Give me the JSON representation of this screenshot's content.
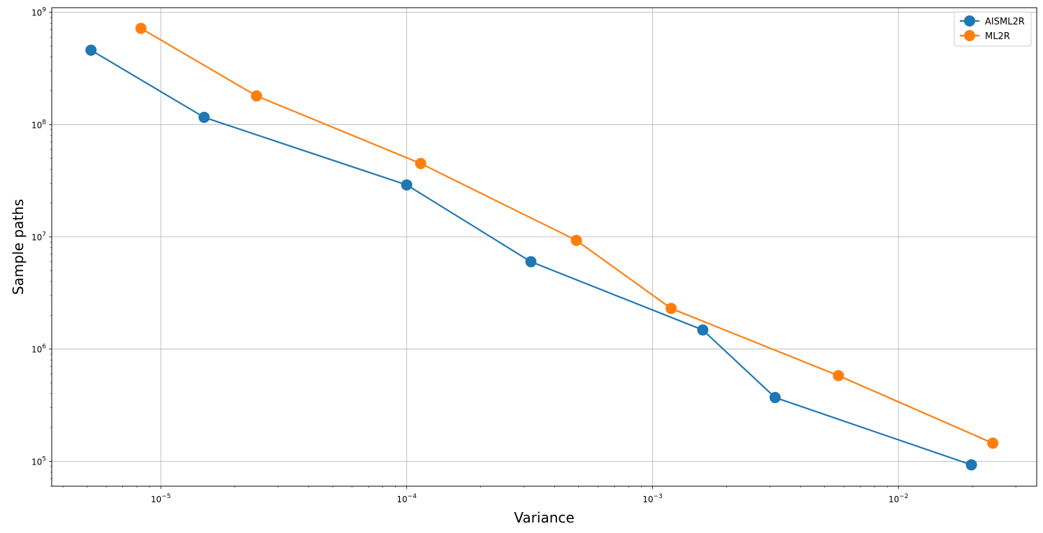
{
  "chart_data": {
    "type": "line",
    "xlabel": "Variance",
    "ylabel": "Sample paths",
    "xscale": "log",
    "yscale": "log",
    "xlim": [
      3.6e-06,
      0.0365
    ],
    "ylim": [
      60000,
      1100000000.0
    ],
    "grid": true,
    "legend_position": "top-right",
    "x_ticks": [
      {
        "value": 1e-05,
        "label": "10^-5"
      },
      {
        "value": 0.0001,
        "label": "10^-4"
      },
      {
        "value": 0.001,
        "label": "10^-3"
      },
      {
        "value": 0.01,
        "label": "10^-2"
      }
    ],
    "y_ticks": [
      {
        "value": 100000.0,
        "label": "10^5"
      },
      {
        "value": 1000000.0,
        "label": "10^6"
      },
      {
        "value": 10000000.0,
        "label": "10^7"
      },
      {
        "value": 100000000.0,
        "label": "10^8"
      },
      {
        "value": 1000000000.0,
        "label": "10^9"
      }
    ],
    "series": [
      {
        "name": "AISML2R",
        "color": "#1f77b4",
        "x": [
          5.2e-06,
          1.5e-05,
          0.0001,
          0.00032,
          0.0016,
          0.00315,
          0.0198
        ],
        "y": [
          460000000.0,
          116000000.0,
          29000000.0,
          6000000.0,
          1480000.0,
          370000.0,
          93000.0
        ]
      },
      {
        "name": "ML2R",
        "color": "#ff7f0e",
        "x": [
          8.3e-06,
          2.45e-05,
          0.000114,
          0.00049,
          0.00119,
          0.0057,
          0.0242
        ],
        "y": [
          720000000.0,
          180000000.0,
          45000000.0,
          9300000.0,
          2300000.0,
          580000.0,
          145000.0
        ]
      }
    ]
  }
}
